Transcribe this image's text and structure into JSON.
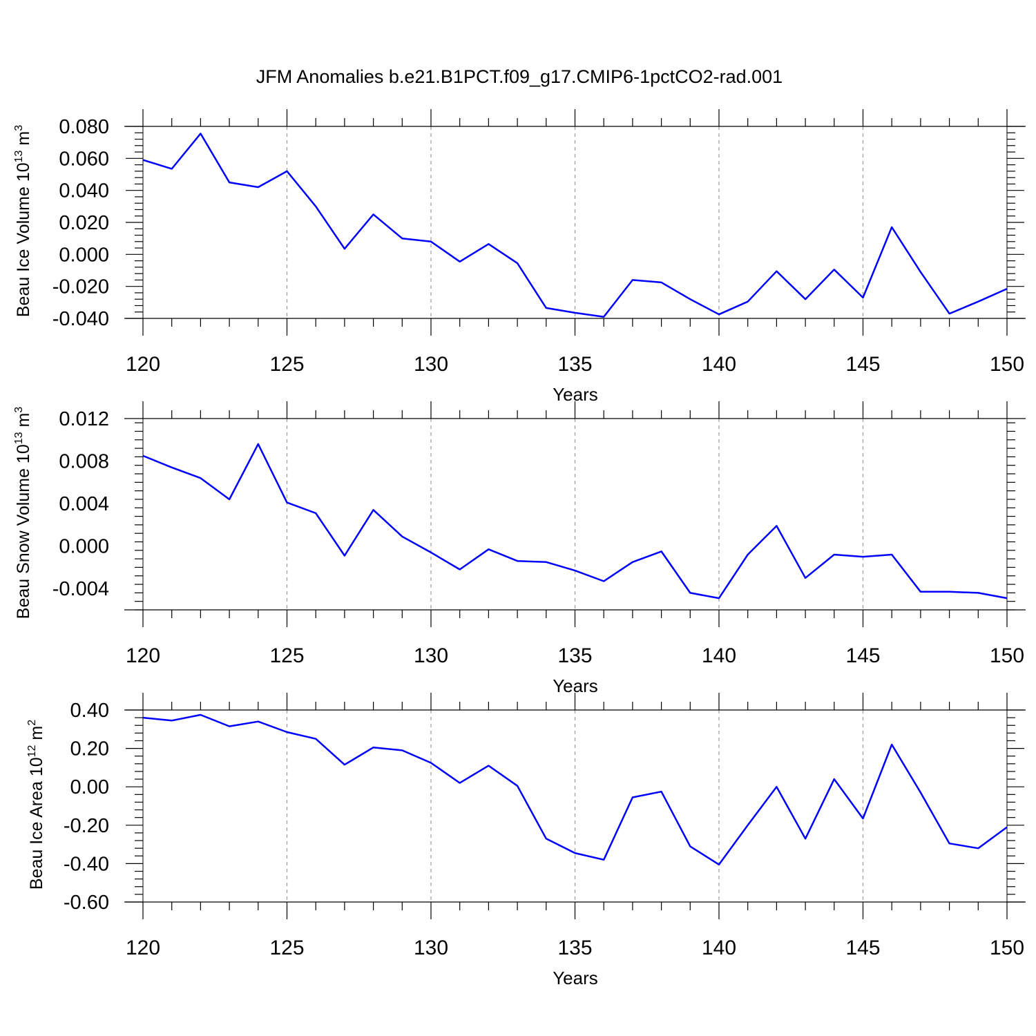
{
  "title": "JFM Anomalies b.e21.B1PCT.f09_g17.CMIP6-1pctCO2-rad.001",
  "colors": {
    "line": "#0000ff",
    "axis": "#000000",
    "grid": "#999999"
  },
  "chart_data": [
    {
      "type": "line",
      "ylabel": "Beau Ice Volume",
      "ylabel_unit_base": "10",
      "ylabel_unit_exp": "13",
      "ylabel_unit_tail": "m",
      "ylabel_unit_tail_exp": "3",
      "xlabel": "Years",
      "xlim": [
        120,
        150
      ],
      "ylim": [
        -0.04,
        0.08
      ],
      "xticks": [
        "120",
        "125",
        "130",
        "135",
        "140",
        "145",
        "150"
      ],
      "yticks": [
        "0.080",
        "0.060",
        "0.040",
        "0.020",
        "0.000",
        "-0.020",
        "-0.040"
      ],
      "grid": "vertical dashed at major x ticks",
      "series": [
        {
          "x": [
            120,
            121,
            122,
            123,
            124,
            125,
            126,
            127,
            128,
            129,
            130,
            131,
            132,
            133,
            134,
            135,
            136,
            137,
            138,
            139,
            140,
            141,
            142,
            143,
            144,
            145,
            146,
            147,
            148,
            149,
            150
          ],
          "values": [
            0.059,
            0.0535,
            0.0755,
            0.045,
            0.042,
            0.052,
            0.03,
            0.0035,
            0.025,
            0.01,
            0.008,
            -0.0045,
            0.0065,
            -0.0055,
            -0.0335,
            -0.0365,
            -0.039,
            -0.016,
            -0.0175,
            -0.028,
            -0.0375,
            -0.0295,
            -0.0105,
            -0.028,
            -0.0095,
            -0.027,
            0.017,
            -0.011,
            -0.037,
            -0.0295,
            -0.0215
          ]
        }
      ]
    },
    {
      "type": "line",
      "ylabel": "Beau Snow Volume",
      "ylabel_unit_base": "10",
      "ylabel_unit_exp": "13",
      "ylabel_unit_tail": "m",
      "ylabel_unit_tail_exp": "3",
      "xlabel": "Years",
      "xlim": [
        120,
        150
      ],
      "ylim": [
        -0.006,
        0.012
      ],
      "xticks": [
        "120",
        "125",
        "130",
        "135",
        "140",
        "145",
        "150"
      ],
      "yticks": [
        "0.012",
        "0.008",
        "0.004",
        "0.000",
        "-0.004"
      ],
      "grid": "vertical dashed at major x ticks",
      "series": [
        {
          "x": [
            120,
            121,
            122,
            123,
            124,
            125,
            126,
            127,
            128,
            129,
            130,
            131,
            132,
            133,
            134,
            135,
            136,
            137,
            138,
            139,
            140,
            141,
            142,
            143,
            144,
            145,
            146,
            147,
            148,
            149,
            150
          ],
          "values": [
            0.0085,
            0.0074,
            0.0064,
            0.0044,
            0.0096,
            0.0041,
            0.0031,
            -0.0009,
            0.0034,
            0.0009,
            -0.0006,
            -0.0022,
            -0.0003,
            -0.0014,
            -0.0015,
            -0.0023,
            -0.0033,
            -0.0015,
            -0.0005,
            -0.0044,
            -0.0049,
            -0.0008,
            0.0019,
            -0.003,
            -0.0008,
            -0.001,
            -0.0008,
            -0.0043,
            -0.0043,
            -0.0044,
            -0.0049
          ]
        }
      ]
    },
    {
      "type": "line",
      "ylabel": "Beau Ice Area",
      "ylabel_unit_base": "10",
      "ylabel_unit_exp": "12",
      "ylabel_unit_tail": "m",
      "ylabel_unit_tail_exp": "2",
      "xlabel": "Years",
      "xlim": [
        120,
        150
      ],
      "ylim": [
        -0.6,
        0.4
      ],
      "xticks": [
        "120",
        "125",
        "130",
        "135",
        "140",
        "145",
        "150"
      ],
      "yticks": [
        "0.40",
        "0.20",
        "0.00",
        "-0.20",
        "-0.40",
        "-0.60"
      ],
      "grid": "vertical dashed at major x ticks",
      "series": [
        {
          "x": [
            120,
            121,
            122,
            123,
            124,
            125,
            126,
            127,
            128,
            129,
            130,
            131,
            132,
            133,
            134,
            135,
            136,
            137,
            138,
            139,
            140,
            141,
            142,
            143,
            144,
            145,
            146,
            147,
            148,
            149,
            150
          ],
          "values": [
            0.36,
            0.345,
            0.375,
            0.315,
            0.34,
            0.285,
            0.25,
            0.115,
            0.205,
            0.19,
            0.125,
            0.02,
            0.11,
            0.005,
            -0.27,
            -0.345,
            -0.38,
            -0.055,
            -0.025,
            -0.31,
            -0.405,
            -0.2,
            0.0,
            -0.27,
            0.04,
            -0.165,
            0.22,
            -0.03,
            -0.295,
            -0.32,
            -0.21
          ]
        }
      ]
    }
  ]
}
